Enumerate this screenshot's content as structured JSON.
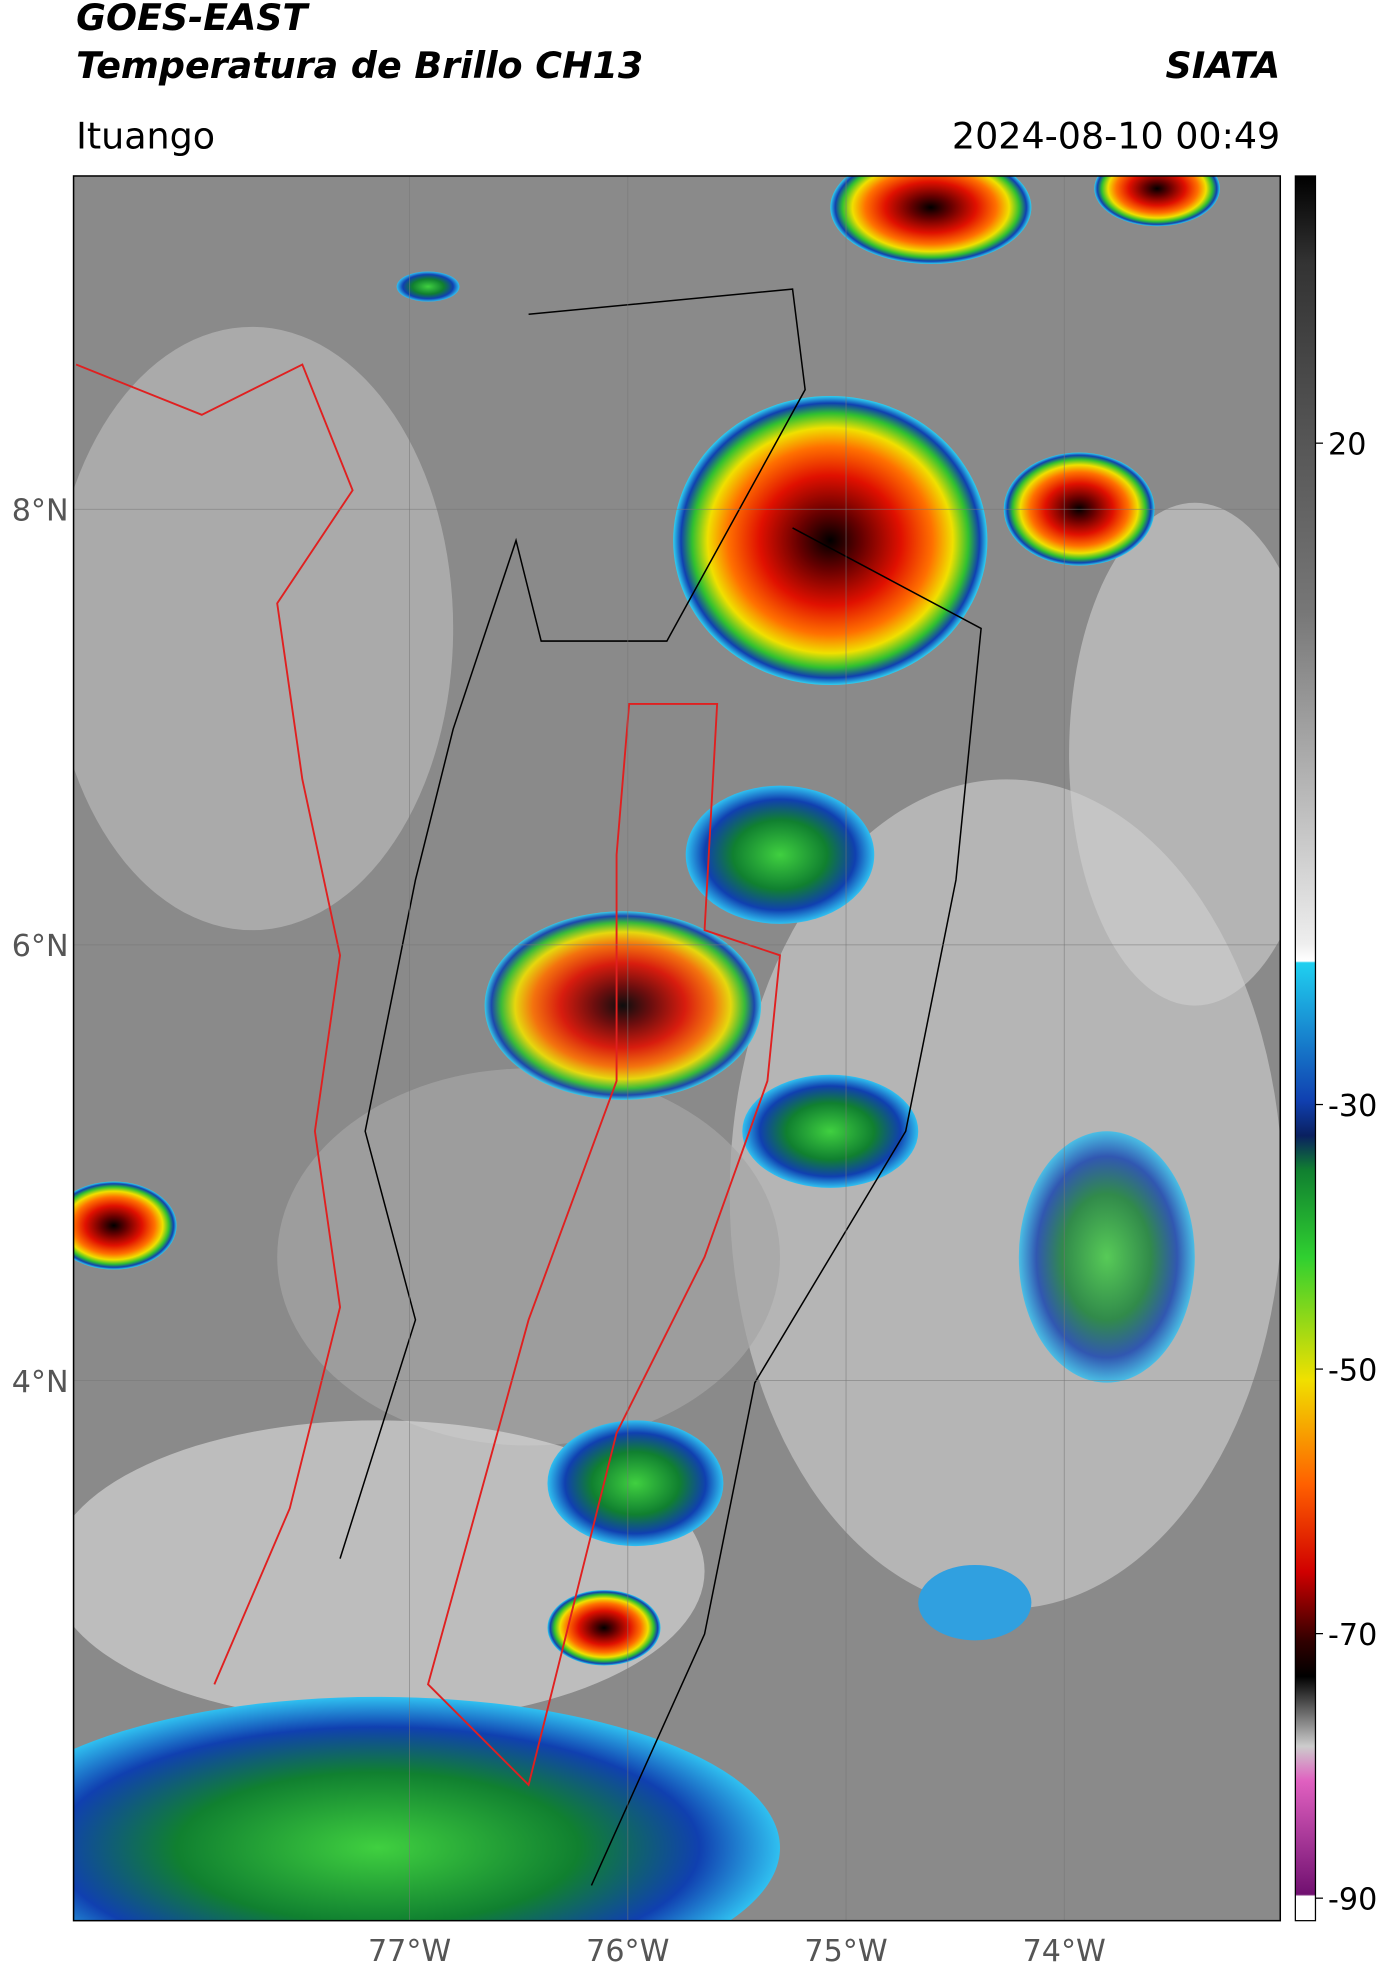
{
  "chart_data": {
    "type": "map",
    "title": "GOES-EAST",
    "subtitle": "Temperatura de Brillo CH13",
    "source": "SIATA",
    "location": "Ituango",
    "datetime": "2024-08-10 00:49",
    "xlim": [
      -78.54,
      -73.01
    ],
    "ylim": [
      1.52,
      9.53
    ],
    "xticks": [
      {
        "value": -77,
        "label": "77°W"
      },
      {
        "value": -76,
        "label": "76°W"
      },
      {
        "value": -75,
        "label": "75°W"
      },
      {
        "value": -74,
        "label": "74°W"
      }
    ],
    "yticks": [
      {
        "value": 8,
        "label": "8°N"
      },
      {
        "value": 6,
        "label": "6°N"
      },
      {
        "value": 4,
        "label": "4°N"
      }
    ],
    "colorbar": {
      "lim": [
        -91.7,
        40.2
      ],
      "ticks": [
        20,
        -30,
        -50,
        -70,
        -90
      ]
    },
    "grid": true
  }
}
